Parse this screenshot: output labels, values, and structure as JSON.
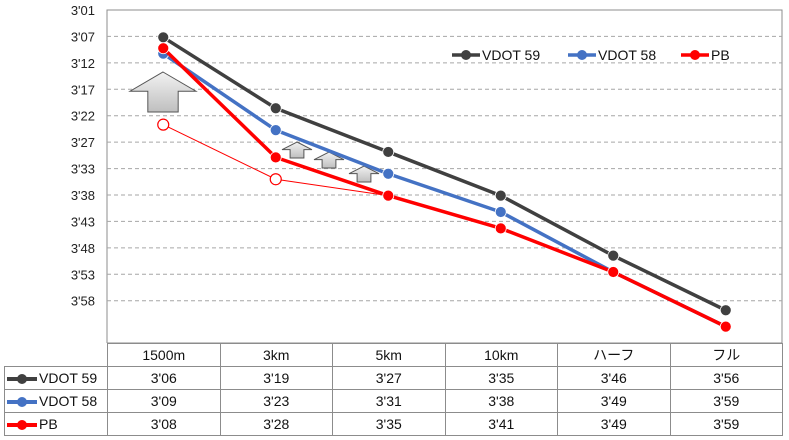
{
  "chart_data": {
    "type": "line",
    "categories": [
      "1500m",
      "3km",
      "5km",
      "10km",
      "ハーフ",
      "フル"
    ],
    "y_tick_labels": [
      "3'01",
      "3'07",
      "3'12",
      "3'17",
      "3'22",
      "3'27",
      "3'33",
      "3'38",
      "3'43",
      "3'48",
      "3'53",
      "3'58"
    ],
    "y_axis_inverted": true,
    "ylim_seconds": [
      181,
      242
    ],
    "grid": true,
    "legend_position": "top-right",
    "series": [
      {
        "name": "VDOT 59",
        "color": "#404040",
        "values": [
          186,
          199,
          207,
          215,
          226,
          236
        ],
        "labels": [
          "3'06",
          "3'19",
          "3'27",
          "3'35",
          "3'46",
          "3'56"
        ]
      },
      {
        "name": "VDOT 58",
        "color": "#4472c4",
        "values": [
          189,
          203,
          211,
          218,
          229,
          239
        ],
        "labels": [
          "3'09",
          "3'23",
          "3'31",
          "3'38",
          "3'49",
          "3'59"
        ]
      },
      {
        "name": "PB",
        "color": "#ff0000",
        "values": [
          188,
          208,
          215,
          221,
          229,
          239
        ],
        "labels": [
          "3'08",
          "3'28",
          "3'35",
          "3'41",
          "3'49",
          "3'59"
        ]
      }
    ],
    "annotations": {
      "hollow_points": [
        {
          "category": "1500m",
          "value": 202
        },
        {
          "category": "3km",
          "value": 212
        }
      ],
      "up_arrows": 4
    }
  }
}
